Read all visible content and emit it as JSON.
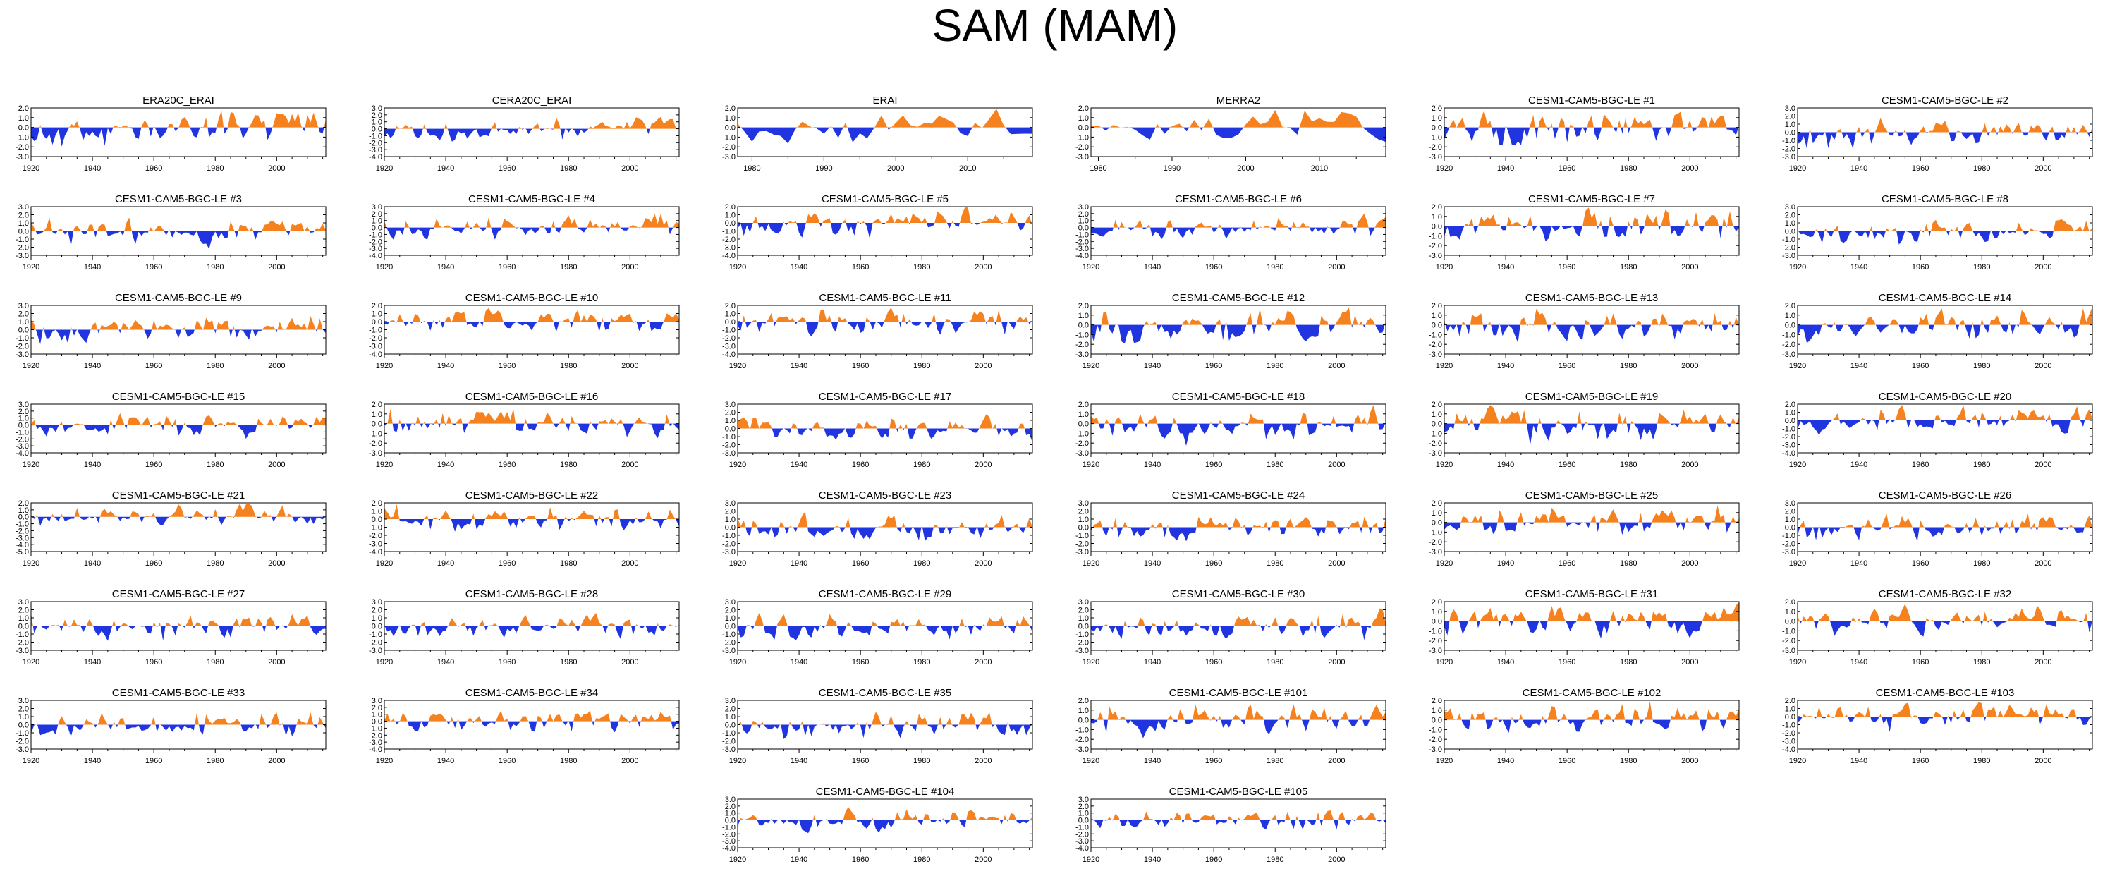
{
  "title": "SAM (MAM)",
  "colors": {
    "positive": "#f5821f",
    "negative": "#2035e0",
    "axis": "#000000"
  },
  "chart_data": [
    {
      "type": "area",
      "title": "ERA20C_ERAI",
      "xlim": [
        1920,
        2016
      ],
      "ylim": [
        -3,
        2
      ],
      "yticks": [
        "2.0",
        "1.0",
        "0.0",
        "-1.0",
        "-2.0",
        "-3.0"
      ],
      "xticks": [
        "1920",
        "1940",
        "1960",
        "1980",
        "2000"
      ],
      "seed": 11,
      "trend": 1.3
    },
    {
      "type": "area",
      "title": "CERA20C_ERAI",
      "xlim": [
        1920,
        2016
      ],
      "ylim": [
        -4,
        3
      ],
      "yticks": [
        "3.0",
        "2.0",
        "1.0",
        "0.0",
        "-1.0",
        "-2.0",
        "-3.0",
        "-4.0"
      ],
      "xticks": [
        "1920",
        "1940",
        "1960",
        "1980",
        "2000"
      ],
      "seed": 12,
      "trend": 1.2
    },
    {
      "type": "area",
      "title": "ERAI",
      "xlim": [
        1978,
        2019
      ],
      "ylim": [
        -3,
        2
      ],
      "yticks": [
        "2.0",
        "1.0",
        "0.0",
        "-1.0",
        "-2.0",
        "-3.0"
      ],
      "xticks": [
        "1980",
        "1990",
        "2000",
        "2010"
      ],
      "seed": 13,
      "trend": 0.6
    },
    {
      "type": "area",
      "title": "MERRA2",
      "xlim": [
        1979,
        2019
      ],
      "ylim": [
        -3,
        2
      ],
      "yticks": [
        "2.0",
        "1.0",
        "0.0",
        "-1.0",
        "-2.0",
        "-3.0"
      ],
      "xticks": [
        "1980",
        "1990",
        "2000",
        "2010"
      ],
      "seed": 14,
      "trend": 0.6
    },
    {
      "type": "area",
      "title": "CESM1-CAM5-BGC-LE #1",
      "xlim": [
        1920,
        2016
      ],
      "ylim": [
        -3,
        2
      ],
      "yticks": [
        "2.0",
        "1.0",
        "0.0",
        "-1.0",
        "-2.0",
        "-3.0"
      ],
      "xticks": [
        "1920",
        "1940",
        "1960",
        "1980",
        "2000"
      ],
      "seed": 21,
      "trend": 0.4
    },
    {
      "type": "area",
      "title": "CESM1-CAM5-BGC-LE #2",
      "xlim": [
        1920,
        2016
      ],
      "ylim": [
        -3,
        3
      ],
      "yticks": [
        "3.0",
        "2.0",
        "1.0",
        "0.0",
        "-1.0",
        "-2.0",
        "-3.0"
      ],
      "xticks": [
        "1920",
        "1940",
        "1960",
        "1980",
        "2000"
      ],
      "seed": 22,
      "trend": 0.4
    },
    {
      "type": "area",
      "title": "CESM1-CAM5-BGC-LE #3",
      "xlim": [
        1920,
        2016
      ],
      "ylim": [
        -3,
        3
      ],
      "yticks": [
        "3.0",
        "2.0",
        "1.0",
        "0.0",
        "-1.0",
        "-2.0",
        "-3.0"
      ],
      "xticks": [
        "1920",
        "1940",
        "1960",
        "1980",
        "2000"
      ],
      "seed": 23,
      "trend": 0.4
    },
    {
      "type": "area",
      "title": "CESM1-CAM5-BGC-LE #4",
      "xlim": [
        1920,
        2016
      ],
      "ylim": [
        -4,
        3
      ],
      "yticks": [
        "3.0",
        "2.0",
        "1.0",
        "0.0",
        "-1.0",
        "-2.0",
        "-3.0",
        "-4.0"
      ],
      "xticks": [
        "1920",
        "1940",
        "1960",
        "1980",
        "2000"
      ],
      "seed": 24,
      "trend": 0.4
    },
    {
      "type": "area",
      "title": "CESM1-CAM5-BGC-LE #5",
      "xlim": [
        1920,
        2016
      ],
      "ylim": [
        -4,
        2
      ],
      "yticks": [
        "2.0",
        "1.0",
        "0.0",
        "-1.0",
        "-2.0",
        "-3.0",
        "-4.0"
      ],
      "xticks": [
        "1920",
        "1940",
        "1960",
        "1980",
        "2000"
      ],
      "seed": 25,
      "trend": 0.4
    },
    {
      "type": "area",
      "title": "CESM1-CAM5-BGC-LE #6",
      "xlim": [
        1920,
        2016
      ],
      "ylim": [
        -4,
        3
      ],
      "yticks": [
        "3.0",
        "2.0",
        "1.0",
        "0.0",
        "-1.0",
        "-2.0",
        "-3.0",
        "-4.0"
      ],
      "xticks": [
        "1920",
        "1940",
        "1960",
        "1980",
        "2000"
      ],
      "seed": 26,
      "trend": 0.4
    },
    {
      "type": "area",
      "title": "CESM1-CAM5-BGC-LE #7",
      "xlim": [
        1920,
        2016
      ],
      "ylim": [
        -3,
        2
      ],
      "yticks": [
        "2.0",
        "1.0",
        "0.0",
        "-1.0",
        "-2.0",
        "-3.0"
      ],
      "xticks": [
        "1920",
        "1940",
        "1960",
        "1980",
        "2000"
      ],
      "seed": 27,
      "trend": 0.3
    },
    {
      "type": "area",
      "title": "CESM1-CAM5-BGC-LE #8",
      "xlim": [
        1920,
        2016
      ],
      "ylim": [
        -3,
        3
      ],
      "yticks": [
        "3.0",
        "2.0",
        "1.0",
        "0.0",
        "-1.0",
        "-2.0",
        "-3.0"
      ],
      "xticks": [
        "1920",
        "1940",
        "1960",
        "1980",
        "2000"
      ],
      "seed": 28,
      "trend": 0.4
    },
    {
      "type": "area",
      "title": "CESM1-CAM5-BGC-LE #9",
      "xlim": [
        1920,
        2016
      ],
      "ylim": [
        -3,
        3
      ],
      "yticks": [
        "3.0",
        "2.0",
        "1.0",
        "0.0",
        "-1.0",
        "-2.0",
        "-3.0"
      ],
      "xticks": [
        "1920",
        "1940",
        "1960",
        "1980",
        "2000"
      ],
      "seed": 29,
      "trend": 0.5
    },
    {
      "type": "area",
      "title": "CESM1-CAM5-BGC-LE #10",
      "xlim": [
        1920,
        2016
      ],
      "ylim": [
        -4,
        2
      ],
      "yticks": [
        "2.0",
        "1.0",
        "0.0",
        "-1.0",
        "-2.0",
        "-3.0",
        "-4.0"
      ],
      "xticks": [
        "1920",
        "1940",
        "1960",
        "1980",
        "2000"
      ],
      "seed": 30,
      "trend": 0.3
    },
    {
      "type": "area",
      "title": "CESM1-CAM5-BGC-LE #11",
      "xlim": [
        1920,
        2016
      ],
      "ylim": [
        -4,
        2
      ],
      "yticks": [
        "2.0",
        "1.0",
        "0.0",
        "-1.0",
        "-2.0",
        "-3.0",
        "-4.0"
      ],
      "xticks": [
        "1920",
        "1940",
        "1960",
        "1980",
        "2000"
      ],
      "seed": 31,
      "trend": 0.3
    },
    {
      "type": "area",
      "title": "CESM1-CAM5-BGC-LE #12",
      "xlim": [
        1920,
        2016
      ],
      "ylim": [
        -3,
        2
      ],
      "yticks": [
        "2.0",
        "1.0",
        "0.0",
        "-1.0",
        "-2.0",
        "-3.0"
      ],
      "xticks": [
        "1920",
        "1940",
        "1960",
        "1980",
        "2000"
      ],
      "seed": 32,
      "trend": 0.3
    },
    {
      "type": "area",
      "title": "CESM1-CAM5-BGC-LE #13",
      "xlim": [
        1920,
        2016
      ],
      "ylim": [
        -3,
        2
      ],
      "yticks": [
        "2.0",
        "1.0",
        "0.0",
        "-1.0",
        "-2.0",
        "-3.0"
      ],
      "xticks": [
        "1920",
        "1940",
        "1960",
        "1980",
        "2000"
      ],
      "seed": 33,
      "trend": 0.3
    },
    {
      "type": "area",
      "title": "CESM1-CAM5-BGC-LE #14",
      "xlim": [
        1920,
        2016
      ],
      "ylim": [
        -3,
        2
      ],
      "yticks": [
        "2.0",
        "1.0",
        "0.0",
        "-1.0",
        "-2.0",
        "-3.0"
      ],
      "xticks": [
        "1920",
        "1940",
        "1960",
        "1980",
        "2000"
      ],
      "seed": 34,
      "trend": 0.3
    },
    {
      "type": "area",
      "title": "CESM1-CAM5-BGC-LE #15",
      "xlim": [
        1920,
        2016
      ],
      "ylim": [
        -4,
        3
      ],
      "yticks": [
        "3.0",
        "2.0",
        "1.0",
        "0.0",
        "-1.0",
        "-2.0",
        "-3.0",
        "-4.0"
      ],
      "xticks": [
        "1920",
        "1940",
        "1960",
        "1980",
        "2000"
      ],
      "seed": 35,
      "trend": 0.3
    },
    {
      "type": "area",
      "title": "CESM1-CAM5-BGC-LE #16",
      "xlim": [
        1920,
        2016
      ],
      "ylim": [
        -3,
        2
      ],
      "yticks": [
        "2.0",
        "1.0",
        "0.0",
        "-1.0",
        "-2.0",
        "-3.0"
      ],
      "xticks": [
        "1920",
        "1940",
        "1960",
        "1980",
        "2000"
      ],
      "seed": 36,
      "trend": 0.3
    },
    {
      "type": "area",
      "title": "CESM1-CAM5-BGC-LE #17",
      "xlim": [
        1920,
        2016
      ],
      "ylim": [
        -3,
        3
      ],
      "yticks": [
        "3.0",
        "2.0",
        "1.0",
        "0.0",
        "-1.0",
        "-2.0",
        "-3.0"
      ],
      "xticks": [
        "1920",
        "1940",
        "1960",
        "1980",
        "2000"
      ],
      "seed": 37,
      "trend": 0.3
    },
    {
      "type": "area",
      "title": "CESM1-CAM5-BGC-LE #18",
      "xlim": [
        1920,
        2016
      ],
      "ylim": [
        -3,
        2
      ],
      "yticks": [
        "2.0",
        "1.0",
        "0.0",
        "-1.0",
        "-2.0",
        "-3.0"
      ],
      "xticks": [
        "1920",
        "1940",
        "1960",
        "1980",
        "2000"
      ],
      "seed": 38,
      "trend": 0.3
    },
    {
      "type": "area",
      "title": "CESM1-CAM5-BGC-LE #19",
      "xlim": [
        1920,
        2016
      ],
      "ylim": [
        -3,
        2
      ],
      "yticks": [
        "2.0",
        "1.0",
        "0.0",
        "-1.0",
        "-2.0",
        "-3.0"
      ],
      "xticks": [
        "1920",
        "1940",
        "1960",
        "1980",
        "2000"
      ],
      "seed": 39,
      "trend": 0.3
    },
    {
      "type": "area",
      "title": "CESM1-CAM5-BGC-LE #20",
      "xlim": [
        1920,
        2016
      ],
      "ylim": [
        -4,
        2
      ],
      "yticks": [
        "2.0",
        "1.0",
        "0.0",
        "-1.0",
        "-2.0",
        "-3.0",
        "-4.0"
      ],
      "xticks": [
        "1920",
        "1940",
        "1960",
        "1980",
        "2000"
      ],
      "seed": 40,
      "trend": 0.3
    },
    {
      "type": "area",
      "title": "CESM1-CAM5-BGC-LE #21",
      "xlim": [
        1920,
        2016
      ],
      "ylim": [
        -5,
        2
      ],
      "yticks": [
        "2.0",
        "1.0",
        "0.0",
        "-1.0",
        "-2.0",
        "-3.0",
        "-4.0",
        "-5.0"
      ],
      "xticks": [
        "1920",
        "1940",
        "1960",
        "1980",
        "2000"
      ],
      "seed": 41,
      "trend": 0.3
    },
    {
      "type": "area",
      "title": "CESM1-CAM5-BGC-LE #22",
      "xlim": [
        1920,
        2016
      ],
      "ylim": [
        -4,
        2
      ],
      "yticks": [
        "2.0",
        "1.0",
        "0.0",
        "-1.0",
        "-2.0",
        "-3.0",
        "-4.0"
      ],
      "xticks": [
        "1920",
        "1940",
        "1960",
        "1980",
        "2000"
      ],
      "seed": 42,
      "trend": 0.3
    },
    {
      "type": "area",
      "title": "CESM1-CAM5-BGC-LE #23",
      "xlim": [
        1920,
        2016
      ],
      "ylim": [
        -3,
        3
      ],
      "yticks": [
        "3.0",
        "2.0",
        "1.0",
        "0.0",
        "-1.0",
        "-2.0",
        "-3.0"
      ],
      "xticks": [
        "1920",
        "1940",
        "1960",
        "1980",
        "2000"
      ],
      "seed": 43,
      "trend": 0.3
    },
    {
      "type": "area",
      "title": "CESM1-CAM5-BGC-LE #24",
      "xlim": [
        1920,
        2016
      ],
      "ylim": [
        -3,
        3
      ],
      "yticks": [
        "3.0",
        "2.0",
        "1.0",
        "0.0",
        "-1.0",
        "-2.0",
        "-3.0"
      ],
      "xticks": [
        "1920",
        "1940",
        "1960",
        "1980",
        "2000"
      ],
      "seed": 44,
      "trend": 0.3
    },
    {
      "type": "area",
      "title": "CESM1-CAM5-BGC-LE #25",
      "xlim": [
        1920,
        2016
      ],
      "ylim": [
        -3,
        2
      ],
      "yticks": [
        "2.0",
        "1.0",
        "0.0",
        "-1.0",
        "-2.0",
        "-3.0"
      ],
      "xticks": [
        "1920",
        "1940",
        "1960",
        "1980",
        "2000"
      ],
      "seed": 45,
      "trend": 0.3
    },
    {
      "type": "area",
      "title": "CESM1-CAM5-BGC-LE #26",
      "xlim": [
        1920,
        2016
      ],
      "ylim": [
        -3,
        3
      ],
      "yticks": [
        "3.0",
        "2.0",
        "1.0",
        "0.0",
        "-1.0",
        "-2.0",
        "-3.0"
      ],
      "xticks": [
        "1920",
        "1940",
        "1960",
        "1980",
        "2000"
      ],
      "seed": 46,
      "trend": 0.3
    },
    {
      "type": "area",
      "title": "CESM1-CAM5-BGC-LE #27",
      "xlim": [
        1920,
        2016
      ],
      "ylim": [
        -3,
        3
      ],
      "yticks": [
        "3.0",
        "2.0",
        "1.0",
        "0.0",
        "-1.0",
        "-2.0",
        "-3.0"
      ],
      "xticks": [
        "1920",
        "1940",
        "1960",
        "1980",
        "2000"
      ],
      "seed": 47,
      "trend": 0.3
    },
    {
      "type": "area",
      "title": "CESM1-CAM5-BGC-LE #28",
      "xlim": [
        1920,
        2016
      ],
      "ylim": [
        -3,
        3
      ],
      "yticks": [
        "3.0",
        "2.0",
        "1.0",
        "0.0",
        "-1.0",
        "-2.0",
        "-3.0"
      ],
      "xticks": [
        "1920",
        "1940",
        "1960",
        "1980",
        "2000"
      ],
      "seed": 48,
      "trend": 0.3
    },
    {
      "type": "area",
      "title": "CESM1-CAM5-BGC-LE #29",
      "xlim": [
        1920,
        2016
      ],
      "ylim": [
        -3,
        3
      ],
      "yticks": [
        "3.0",
        "2.0",
        "1.0",
        "0.0",
        "-1.0",
        "-2.0",
        "-3.0"
      ],
      "xticks": [
        "1920",
        "1940",
        "1960",
        "1980",
        "2000"
      ],
      "seed": 49,
      "trend": 0.3
    },
    {
      "type": "area",
      "title": "CESM1-CAM5-BGC-LE #30",
      "xlim": [
        1920,
        2016
      ],
      "ylim": [
        -3,
        3
      ],
      "yticks": [
        "3.0",
        "2.0",
        "1.0",
        "0.0",
        "-1.0",
        "-2.0",
        "-3.0"
      ],
      "xticks": [
        "1920",
        "1940",
        "1960",
        "1980",
        "2000"
      ],
      "seed": 50,
      "trend": 0.3
    },
    {
      "type": "area",
      "title": "CESM1-CAM5-BGC-LE #31",
      "xlim": [
        1920,
        2016
      ],
      "ylim": [
        -3,
        2
      ],
      "yticks": [
        "2.0",
        "1.0",
        "0.0",
        "-1.0",
        "-2.0",
        "-3.0"
      ],
      "xticks": [
        "1920",
        "1940",
        "1960",
        "1980",
        "2000"
      ],
      "seed": 51,
      "trend": 0.3
    },
    {
      "type": "area",
      "title": "CESM1-CAM5-BGC-LE #32",
      "xlim": [
        1920,
        2016
      ],
      "ylim": [
        -3,
        2
      ],
      "yticks": [
        "2.0",
        "1.0",
        "0.0",
        "-1.0",
        "-2.0",
        "-3.0"
      ],
      "xticks": [
        "1920",
        "1940",
        "1960",
        "1980",
        "2000"
      ],
      "seed": 52,
      "trend": 0.3
    },
    {
      "type": "area",
      "title": "CESM1-CAM5-BGC-LE #33",
      "xlim": [
        1920,
        2016
      ],
      "ylim": [
        -3,
        3
      ],
      "yticks": [
        "3.0",
        "2.0",
        "1.0",
        "0.0",
        "-1.0",
        "-2.0",
        "-3.0"
      ],
      "xticks": [
        "1920",
        "1940",
        "1960",
        "1980",
        "2000"
      ],
      "seed": 53,
      "trend": 0.3
    },
    {
      "type": "area",
      "title": "CESM1-CAM5-BGC-LE #34",
      "xlim": [
        1920,
        2016
      ],
      "ylim": [
        -4,
        3
      ],
      "yticks": [
        "3.0",
        "2.0",
        "1.0",
        "0.0",
        "-1.0",
        "-2.0",
        "-3.0",
        "-4.0"
      ],
      "xticks": [
        "1920",
        "1940",
        "1960",
        "1980",
        "2000"
      ],
      "seed": 54,
      "trend": 0.3
    },
    {
      "type": "area",
      "title": "CESM1-CAM5-BGC-LE #35",
      "xlim": [
        1920,
        2016
      ],
      "ylim": [
        -3,
        3
      ],
      "yticks": [
        "3.0",
        "2.0",
        "1.0",
        "0.0",
        "-1.0",
        "-2.0",
        "-3.0"
      ],
      "xticks": [
        "1920",
        "1940",
        "1960",
        "1980",
        "2000"
      ],
      "seed": 55,
      "trend": 0.3
    },
    {
      "type": "area",
      "title": "CESM1-CAM5-BGC-LE #101",
      "xlim": [
        1920,
        2016
      ],
      "ylim": [
        -3,
        2
      ],
      "yticks": [
        "2.0",
        "1.0",
        "0.0",
        "-1.0",
        "-2.0",
        "-3.0"
      ],
      "xticks": [
        "1920",
        "1940",
        "1960",
        "1980",
        "2000"
      ],
      "seed": 56,
      "trend": 0.3
    },
    {
      "type": "area",
      "title": "CESM1-CAM5-BGC-LE #102",
      "xlim": [
        1920,
        2016
      ],
      "ylim": [
        -3,
        2
      ],
      "yticks": [
        "2.0",
        "1.0",
        "0.0",
        "-1.0",
        "-2.0",
        "-3.0"
      ],
      "xticks": [
        "1920",
        "1940",
        "1960",
        "1980",
        "2000"
      ],
      "seed": 57,
      "trend": 0.3
    },
    {
      "type": "area",
      "title": "CESM1-CAM5-BGC-LE #103",
      "xlim": [
        1920,
        2016
      ],
      "ylim": [
        -4,
        2
      ],
      "yticks": [
        "2.0",
        "1.0",
        "0.0",
        "-1.0",
        "-2.0",
        "-3.0",
        "-4.0"
      ],
      "xticks": [
        "1920",
        "1940",
        "1960",
        "1980",
        "2000"
      ],
      "seed": 58,
      "trend": 0.3
    },
    {
      "type": "area",
      "title": "CESM1-CAM5-BGC-LE #104",
      "xlim": [
        1920,
        2016
      ],
      "ylim": [
        -4,
        3
      ],
      "yticks": [
        "3.0",
        "2.0",
        "1.0",
        "0.0",
        "-1.0",
        "-2.0",
        "-3.0",
        "-4.0"
      ],
      "xticks": [
        "1920",
        "1940",
        "1960",
        "1980",
        "2000"
      ],
      "seed": 59,
      "trend": 0.3
    },
    {
      "type": "area",
      "title": "CESM1-CAM5-BGC-LE #105",
      "xlim": [
        1920,
        2016
      ],
      "ylim": [
        -4,
        3
      ],
      "yticks": [
        "3.0",
        "2.0",
        "1.0",
        "0.0",
        "-1.0",
        "-2.0",
        "-3.0",
        "-4.0"
      ],
      "xticks": [
        "1920",
        "1940",
        "1960",
        "1980",
        "2000"
      ],
      "seed": 60,
      "trend": 0.3
    }
  ]
}
